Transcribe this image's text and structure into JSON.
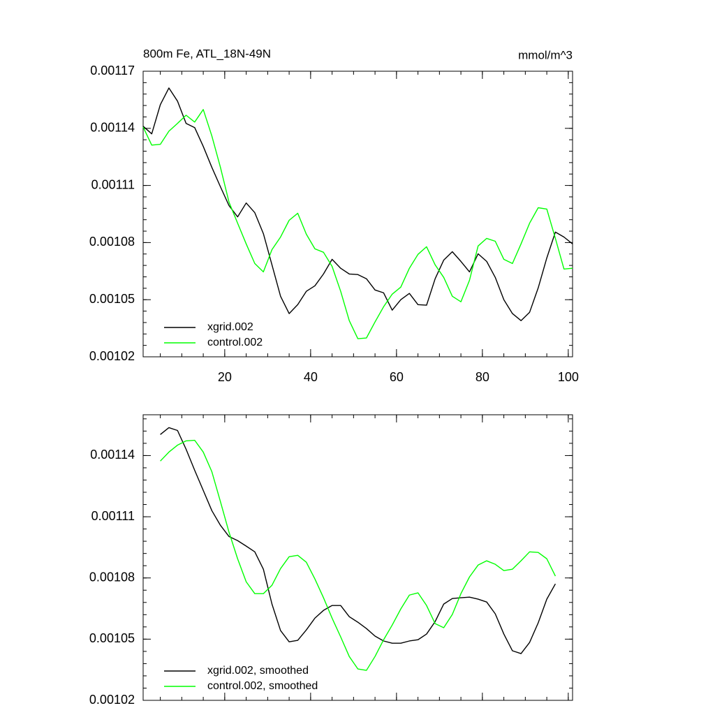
{
  "chart_data": [
    {
      "type": "line",
      "title": "800m Fe, ATL_18N-49N",
      "units": "mmol/m^3",
      "x": [
        1,
        3,
        5,
        7,
        9,
        11,
        13,
        15,
        17,
        19,
        21,
        23,
        25,
        27,
        29,
        31,
        33,
        35,
        37,
        39,
        41,
        43,
        45,
        47,
        49,
        51,
        53,
        55,
        57,
        59,
        61,
        63,
        65,
        67,
        69,
        71,
        73,
        75,
        77,
        79,
        81,
        83,
        85,
        87,
        89,
        91,
        93,
        95,
        97,
        99,
        101
      ],
      "series": [
        {
          "name": "xgrid.002",
          "color": "#000000",
          "values": [
            0.0011411,
            0.0011371,
            0.0011524,
            0.0011612,
            0.0011543,
            0.0011426,
            0.0011404,
            0.0011305,
            0.0011195,
            0.0011093,
            0.0010994,
            0.0010935,
            0.0011008,
            0.0010957,
            0.0010847,
            0.0010683,
            0.0010518,
            0.0010427,
            0.0010474,
            0.0010544,
            0.0010573,
            0.0010635,
            0.0010712,
            0.0010665,
            0.0010635,
            0.0010632,
            0.001061,
            0.0010551,
            0.0010536,
            0.0010445,
            0.00105,
            0.0010533,
            0.0010474,
            0.0010471,
            0.001061,
            0.0010708,
            0.0010752,
            0.0010701,
            0.0010646,
            0.0010741,
            0.0010701,
            0.0010617,
            0.00105,
            0.0010427,
            0.001039,
            0.0010434,
            0.0010562,
            0.0010719,
            0.0010855,
            0.0010829,
            0.0010793
          ]
        },
        {
          "name": "control.002",
          "color": "#00ff00",
          "values": [
            0.0011407,
            0.0011312,
            0.0011316,
            0.0011385,
            0.0011426,
            0.0011469,
            0.0011433,
            0.0011499,
            0.001136,
            0.0011195,
            0.0011012,
            0.0010902,
            0.0010793,
            0.001069,
            0.0010646,
            0.0010763,
            0.0010829,
            0.0010917,
            0.0010954,
            0.0010844,
            0.0010767,
            0.0010749,
            0.0010675,
            0.0010544,
            0.001039,
            0.0010295,
            0.0010299,
            0.0010383,
            0.0010463,
            0.0010529,
            0.0010566,
            0.0010665,
            0.0010738,
            0.0010778,
            0.0010683,
            0.0010617,
            0.0010518,
            0.0010489,
            0.0010602,
            0.0010782,
            0.0010822,
            0.0010807,
            0.0010712,
            0.001069,
            0.0010793,
            0.0010902,
            0.0010983,
            0.0010976,
            0.0010822,
            0.0010661,
            0.0010665
          ]
        }
      ],
      "xlim": [
        1,
        101
      ],
      "xticks": [
        20,
        40,
        60,
        80,
        100
      ],
      "ylim": [
        0.00102,
        0.00117
      ],
      "yticks": [
        0.00102,
        0.00105,
        0.00108,
        0.00111,
        0.00114,
        0.00117
      ],
      "show_xtick_labels": true,
      "xminor": 4,
      "yminor": 5,
      "grid": false,
      "legend": "lower left"
    },
    {
      "type": "line",
      "x": [
        5,
        7,
        9,
        11,
        13,
        15,
        17,
        19,
        21,
        23,
        25,
        27,
        29,
        31,
        33,
        35,
        37,
        39,
        41,
        43,
        45,
        47,
        49,
        51,
        53,
        55,
        57,
        59,
        61,
        63,
        65,
        67,
        69,
        71,
        73,
        75,
        77,
        79,
        81,
        83,
        85,
        87,
        89,
        91,
        93,
        95,
        97
      ],
      "series": [
        {
          "name": "xgrid.002, smoothed",
          "color": "#000000",
          "values": [
            0.0011503,
            0.0011537,
            0.0011523,
            0.0011431,
            0.0011328,
            0.0011229,
            0.001113,
            0.0011058,
            0.0011003,
            0.0010983,
            0.0010956,
            0.0010928,
            0.0010843,
            0.0010672,
            0.0010542,
            0.0010487,
            0.0010494,
            0.0010545,
            0.0010603,
            0.0010641,
            0.0010665,
            0.0010665,
            0.001061,
            0.0010583,
            0.0010552,
            0.0010515,
            0.0010491,
            0.001048,
            0.001048,
            0.0010491,
            0.0010497,
            0.0010525,
            0.0010586,
            0.0010672,
            0.0010699,
            0.0010703,
            0.0010706,
            0.0010696,
            0.0010682,
            0.0010624,
            0.0010525,
            0.0010443,
            0.0010429,
            0.0010484,
            0.001058,
            0.0010696,
            0.0010771
          ]
        },
        {
          "name": "control.002, smoothed",
          "color": "#00ff00",
          "values": [
            0.0011373,
            0.0011417,
            0.0011451,
            0.0011472,
            0.0011475,
            0.0011417,
            0.0011321,
            0.0011174,
            0.0011024,
            0.0010894,
            0.0010781,
            0.0010723,
            0.0010723,
            0.0010764,
            0.0010846,
            0.0010904,
            0.0010911,
            0.0010877,
            0.0010795,
            0.0010703,
            0.0010603,
            0.0010511,
            0.0010415,
            0.0010354,
            0.0010347,
            0.0010415,
            0.0010497,
            0.0010569,
            0.0010648,
            0.0010716,
            0.0010727,
            0.0010665,
            0.0010576,
            0.0010556,
            0.0010621,
            0.0010723,
            0.0010805,
            0.0010863,
            0.0010884,
            0.0010867,
            0.0010836,
            0.0010843,
            0.0010884,
            0.0010928,
            0.0010925,
            0.0010894,
            0.0010809
          ]
        }
      ],
      "xlim": [
        1,
        101
      ],
      "xticks": [
        20,
        40,
        60,
        80,
        100
      ],
      "ylim": [
        0.00102,
        0.00116
      ],
      "yticks": [
        0.00102,
        0.00105,
        0.00108,
        0.00111,
        0.00114
      ],
      "show_xtick_labels": false,
      "xminor": 4,
      "yminor": 5,
      "grid": false,
      "legend": "lower left"
    }
  ]
}
